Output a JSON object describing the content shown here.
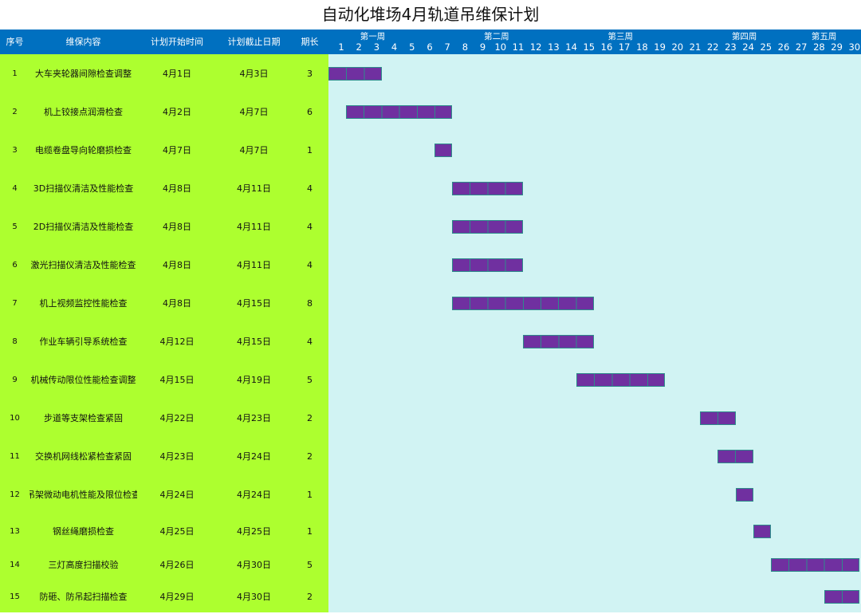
{
  "title": "自动化堆场4月轨道吊维保计划",
  "header": {
    "no": "序号",
    "content": "维保内容",
    "start": "计划开始时间",
    "end": "计划截止日期",
    "duration": "期长",
    "weeks": [
      {
        "label": "第一周",
        "center_day": 3
      },
      {
        "label": "第二周",
        "center_day": 10
      },
      {
        "label": "第三周",
        "center_day": 17
      },
      {
        "label": "第四周",
        "center_day": 24
      },
      {
        "label": "第五周",
        "center_day": 28.5
      }
    ],
    "days": [
      "1",
      "2",
      "3",
      "4",
      "5",
      "6",
      "7",
      "8",
      "9",
      "10",
      "11",
      "12",
      "13",
      "14",
      "15",
      "16",
      "17",
      "18",
      "19",
      "20",
      "21",
      "22",
      "23",
      "24",
      "25",
      "26",
      "27",
      "28",
      "29",
      "30"
    ]
  },
  "colors": {
    "header": "#0070C0",
    "left": "#ADFF2F",
    "chart": "#D1F3F3",
    "bar": "#7030A0"
  },
  "rows": [
    {
      "no": "1",
      "content": "大车夹轮器间隙检查调整",
      "start": "4月1日",
      "end": "4月3日",
      "duration": "3",
      "s": 1,
      "e": 3
    },
    {
      "no": "2",
      "content": "机上铰接点润滑检查",
      "start": "4月2日",
      "end": "4月7日",
      "duration": "6",
      "s": 2,
      "e": 7
    },
    {
      "no": "3",
      "content": "电缆卷盘导向轮磨损检查",
      "start": "4月7日",
      "end": "4月7日",
      "duration": "1",
      "s": 7,
      "e": 7
    },
    {
      "no": "4",
      "content": "3D扫描仪清洁及性能检查",
      "start": "4月8日",
      "end": "4月11日",
      "duration": "4",
      "s": 8,
      "e": 11
    },
    {
      "no": "5",
      "content": "2D扫描仪清洁及性能检查",
      "start": "4月8日",
      "end": "4月11日",
      "duration": "4",
      "s": 8,
      "e": 11
    },
    {
      "no": "6",
      "content": "激光扫描仪清洁及性能检查",
      "start": "4月8日",
      "end": "4月11日",
      "duration": "4",
      "s": 8,
      "e": 11
    },
    {
      "no": "7",
      "content": "机上视频监控性能检查",
      "start": "4月8日",
      "end": "4月15日",
      "duration": "8",
      "s": 8,
      "e": 15
    },
    {
      "no": "8",
      "content": "作业车辆引导系统检查",
      "start": "4月12日",
      "end": "4月15日",
      "duration": "4",
      "s": 12,
      "e": 15
    },
    {
      "no": "9",
      "content": "机械传动限位性能检查调整",
      "start": "4月15日",
      "end": "4月19日",
      "duration": "5",
      "s": 15,
      "e": 19
    },
    {
      "no": "10",
      "content": "步道等支架检查紧固",
      "start": "4月22日",
      "end": "4月23日",
      "duration": "2",
      "s": 22,
      "e": 23
    },
    {
      "no": "11",
      "content": "交换机网线松紧检查紧固",
      "start": "4月23日",
      "end": "4月24日",
      "duration": "2",
      "s": 23,
      "e": 24
    },
    {
      "no": "12",
      "content": "吊架微动电机性能及限位检查",
      "start": "4月24日",
      "end": "4月24日",
      "duration": "1",
      "s": 24,
      "e": 24
    },
    {
      "no": "13",
      "content": "钢丝绳磨损检查",
      "start": "4月25日",
      "end": "4月25日",
      "duration": "1",
      "s": 25,
      "e": 25
    },
    {
      "no": "14",
      "content": "三灯高度扫描校验",
      "start": "4月26日",
      "end": "4月30日",
      "duration": "5",
      "s": 26,
      "e": 30
    },
    {
      "no": "15",
      "content": "防砸、防吊起扫描检查",
      "start": "4月29日",
      "end": "4月30日",
      "duration": "2",
      "s": 29,
      "e": 30
    }
  ]
}
